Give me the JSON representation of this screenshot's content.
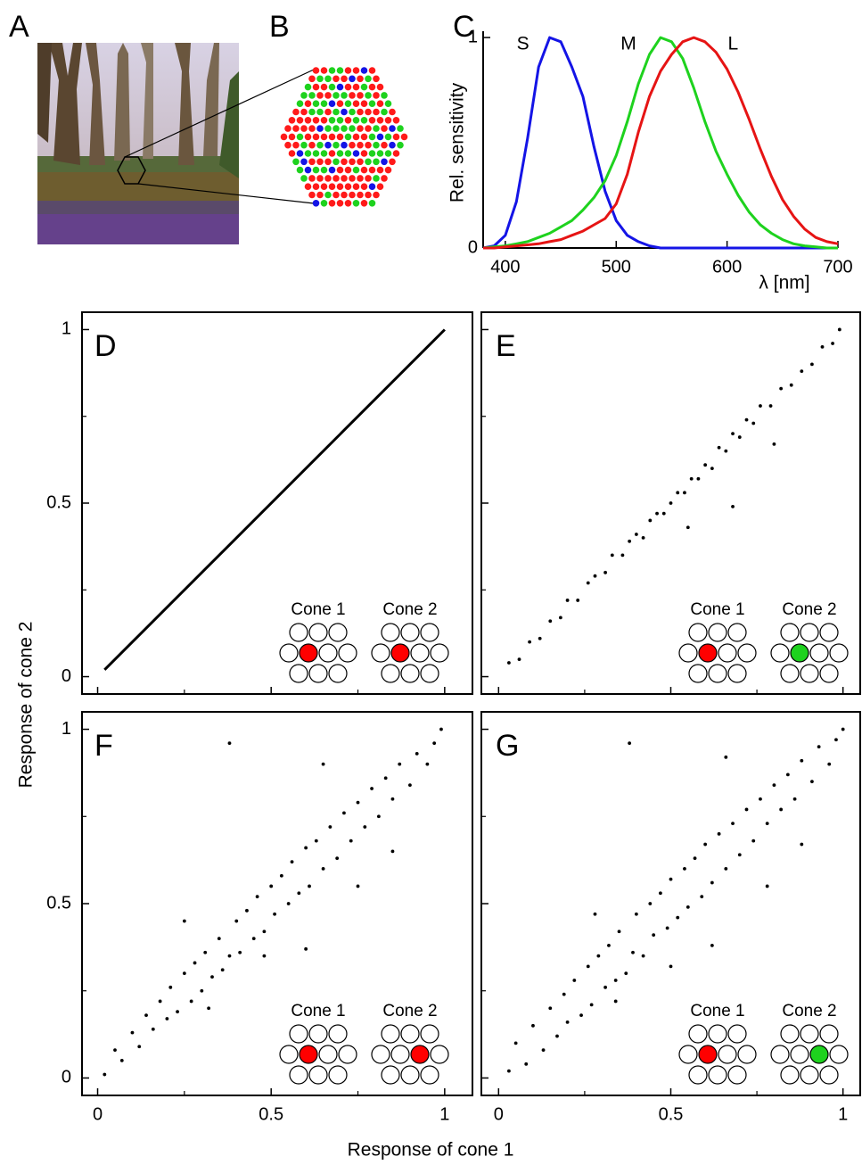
{
  "photo_panel": {
    "label": "A"
  },
  "mosaic_panel": {
    "label": "B"
  },
  "shared": {
    "xlabel": "Response of cone 1",
    "ylabel": "Response of cone 2"
  },
  "chart_data": [
    {
      "type": "line",
      "label": "C",
      "ylabel": "Rel. sensitivity",
      "xlabel": "λ [nm]",
      "xlim": [
        380,
        700
      ],
      "ylim": [
        0,
        1.03
      ],
      "xticks": [
        400,
        500,
        600,
        700
      ],
      "yticks": [
        0,
        1
      ],
      "x": [
        380,
        390,
        400,
        410,
        420,
        430,
        440,
        450,
        460,
        470,
        480,
        490,
        500,
        510,
        520,
        530,
        540,
        550,
        560,
        570,
        580,
        590,
        600,
        610,
        620,
        630,
        640,
        650,
        660,
        670,
        680,
        690,
        700
      ],
      "series": [
        {
          "name": "S",
          "color": "#1414e6",
          "values": [
            0,
            0.01,
            0.06,
            0.22,
            0.52,
            0.86,
            1.0,
            0.98,
            0.86,
            0.72,
            0.48,
            0.27,
            0.13,
            0.06,
            0.03,
            0.01,
            0,
            0,
            0,
            0,
            0,
            0,
            0,
            0,
            0,
            0,
            0,
            0,
            0,
            0,
            0,
            0,
            0
          ]
        },
        {
          "name": "M",
          "color": "#1ed21e",
          "values": [
            0,
            0.005,
            0.01,
            0.02,
            0.03,
            0.05,
            0.07,
            0.1,
            0.13,
            0.18,
            0.24,
            0.32,
            0.44,
            0.6,
            0.78,
            0.92,
            1.0,
            0.98,
            0.9,
            0.76,
            0.6,
            0.46,
            0.35,
            0.25,
            0.17,
            0.11,
            0.07,
            0.04,
            0.02,
            0.01,
            0.005,
            0,
            0
          ]
        },
        {
          "name": "L",
          "color": "#e61414",
          "values": [
            0,
            0,
            0.005,
            0.01,
            0.015,
            0.02,
            0.03,
            0.04,
            0.06,
            0.08,
            0.11,
            0.14,
            0.21,
            0.35,
            0.55,
            0.72,
            0.84,
            0.92,
            0.98,
            1.0,
            0.98,
            0.93,
            0.85,
            0.74,
            0.61,
            0.47,
            0.34,
            0.23,
            0.15,
            0.09,
            0.05,
            0.03,
            0.02
          ]
        }
      ]
    },
    {
      "type": "line",
      "label": "D",
      "xlim": [
        -0.045,
        1.08
      ],
      "ylim": [
        -0.05,
        1.05
      ],
      "xticks": [
        0,
        {
          "value": 0.5,
          "label": "0.5"
        },
        1
      ],
      "yticks": [
        0,
        {
          "value": 0.5,
          "label": "0.5"
        },
        1
      ],
      "minor_ticks": [
        0.25,
        0.75
      ],
      "x": [
        0.02,
        1
      ],
      "values": [
        0.02,
        1
      ],
      "insets": [
        {
          "label": "Cone 1",
          "color": "#ff0000",
          "position": 1
        },
        {
          "label": "Cone 2",
          "color": "#ff0000",
          "position": 1
        }
      ]
    },
    {
      "type": "scatter",
      "label": "E",
      "xlim": [
        -0.05,
        1.05
      ],
      "ylim": [
        -0.05,
        1.05
      ],
      "xticks": [
        0,
        0.5,
        1
      ],
      "yticks": [
        0,
        0.5,
        1
      ],
      "minor_ticks": [
        0.25,
        0.75
      ],
      "x": [
        0.03,
        0.06,
        0.09,
        0.12,
        0.15,
        0.18,
        0.2,
        0.23,
        0.26,
        0.28,
        0.31,
        0.33,
        0.36,
        0.38,
        0.4,
        0.42,
        0.44,
        0.46,
        0.48,
        0.5,
        0.52,
        0.54,
        0.56,
        0.58,
        0.6,
        0.62,
        0.64,
        0.66,
        0.68,
        0.7,
        0.72,
        0.74,
        0.76,
        0.79,
        0.82,
        0.85,
        0.88,
        0.91,
        0.94,
        0.97,
        0.99,
        0.68,
        0.55,
        0.8
      ],
      "values": [
        0.04,
        0.05,
        0.1,
        0.11,
        0.16,
        0.17,
        0.22,
        0.22,
        0.27,
        0.29,
        0.3,
        0.35,
        0.35,
        0.39,
        0.41,
        0.4,
        0.45,
        0.47,
        0.47,
        0.5,
        0.53,
        0.53,
        0.57,
        0.57,
        0.61,
        0.6,
        0.66,
        0.65,
        0.7,
        0.69,
        0.74,
        0.73,
        0.78,
        0.78,
        0.83,
        0.84,
        0.88,
        0.9,
        0.95,
        0.96,
        1.0,
        0.49,
        0.43,
        0.67
      ],
      "insets": [
        {
          "label": "Cone 1",
          "color": "#ff0000",
          "position": 1
        },
        {
          "label": "Cone 2",
          "color": "#1ed21e",
          "position": 1
        }
      ]
    },
    {
      "type": "scatter",
      "label": "F",
      "xlim": [
        -0.045,
        1.08
      ],
      "ylim": [
        -0.05,
        1.05
      ],
      "xticks": [
        0,
        0.5,
        1
      ],
      "yticks": [
        0,
        0.5,
        1
      ],
      "minor_ticks": [
        0.25,
        0.75
      ],
      "x": [
        0.02,
        0.05,
        0.07,
        0.1,
        0.12,
        0.14,
        0.16,
        0.18,
        0.2,
        0.21,
        0.23,
        0.25,
        0.27,
        0.28,
        0.3,
        0.31,
        0.33,
        0.35,
        0.36,
        0.38,
        0.4,
        0.41,
        0.43,
        0.45,
        0.46,
        0.48,
        0.5,
        0.51,
        0.53,
        0.55,
        0.56,
        0.58,
        0.6,
        0.61,
        0.63,
        0.65,
        0.67,
        0.69,
        0.71,
        0.73,
        0.75,
        0.77,
        0.79,
        0.81,
        0.83,
        0.85,
        0.87,
        0.9,
        0.92,
        0.95,
        0.97,
        0.99,
        0.38,
        0.6,
        0.25,
        0.75,
        0.48,
        0.85,
        0.32,
        0.65
      ],
      "values": [
        0.01,
        0.08,
        0.05,
        0.13,
        0.09,
        0.18,
        0.14,
        0.22,
        0.17,
        0.26,
        0.19,
        0.3,
        0.22,
        0.33,
        0.25,
        0.36,
        0.29,
        0.4,
        0.31,
        0.35,
        0.45,
        0.36,
        0.48,
        0.4,
        0.52,
        0.42,
        0.55,
        0.47,
        0.58,
        0.5,
        0.62,
        0.53,
        0.66,
        0.55,
        0.68,
        0.6,
        0.72,
        0.63,
        0.76,
        0.68,
        0.79,
        0.72,
        0.83,
        0.75,
        0.86,
        0.8,
        0.9,
        0.84,
        0.93,
        0.9,
        0.96,
        1.0,
        0.96,
        0.37,
        0.45,
        0.55,
        0.35,
        0.65,
        0.2,
        0.9
      ],
      "insets": [
        {
          "label": "Cone 1",
          "color": "#ff0000",
          "position": 1
        },
        {
          "label": "Cone 2",
          "color": "#ff0000",
          "position": 2
        }
      ]
    },
    {
      "type": "scatter",
      "label": "G",
      "xlim": [
        -0.05,
        1.05
      ],
      "ylim": [
        -0.05,
        1.05
      ],
      "xticks": [
        0,
        0.5,
        1
      ],
      "yticks": [
        0,
        0.5,
        1
      ],
      "minor_ticks": [
        0.25,
        0.75
      ],
      "x": [
        0.03,
        0.05,
        0.08,
        0.1,
        0.13,
        0.15,
        0.17,
        0.19,
        0.2,
        0.22,
        0.24,
        0.26,
        0.27,
        0.29,
        0.31,
        0.32,
        0.34,
        0.35,
        0.37,
        0.39,
        0.4,
        0.42,
        0.44,
        0.45,
        0.47,
        0.49,
        0.5,
        0.52,
        0.54,
        0.55,
        0.57,
        0.59,
        0.6,
        0.62,
        0.64,
        0.66,
        0.68,
        0.7,
        0.72,
        0.74,
        0.76,
        0.78,
        0.8,
        0.82,
        0.84,
        0.86,
        0.88,
        0.91,
        0.93,
        0.96,
        0.98,
        1.0,
        0.38,
        0.62,
        0.28,
        0.78,
        0.5,
        0.88,
        0.34,
        0.66
      ],
      "values": [
        0.02,
        0.1,
        0.04,
        0.15,
        0.08,
        0.2,
        0.12,
        0.24,
        0.16,
        0.28,
        0.18,
        0.32,
        0.21,
        0.35,
        0.26,
        0.38,
        0.28,
        0.42,
        0.3,
        0.36,
        0.47,
        0.35,
        0.5,
        0.41,
        0.53,
        0.43,
        0.57,
        0.46,
        0.6,
        0.49,
        0.63,
        0.52,
        0.67,
        0.56,
        0.7,
        0.6,
        0.73,
        0.64,
        0.77,
        0.68,
        0.8,
        0.73,
        0.84,
        0.77,
        0.87,
        0.8,
        0.91,
        0.85,
        0.95,
        0.9,
        0.97,
        1.0,
        0.96,
        0.38,
        0.47,
        0.55,
        0.32,
        0.67,
        0.22,
        0.92
      ],
      "insets": [
        {
          "label": "Cone 1",
          "color": "#ff0000",
          "position": 1
        },
        {
          "label": "Cone 2",
          "color": "#1ed21e",
          "position": 2
        }
      ]
    }
  ]
}
